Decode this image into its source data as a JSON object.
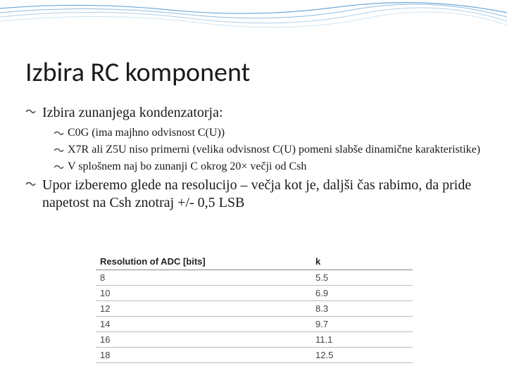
{
  "decoration": {
    "wave_colors": [
      "#6fa8d8",
      "#8fbce0",
      "#b0d0e8",
      "#d0e4f2"
    ],
    "stroke_width": 1
  },
  "title": "Izbira RC komponent",
  "bullets": {
    "l1_1": "Izbira zunanjega kondenzatorja:",
    "l2_1": "C0G (ima majhno odvisnost C(U))",
    "l2_2": "X7R ali Z5U niso primerni (velika odvisnost C(U) pomeni slabše dinamične karakteristike)",
    "l2_3": "V splošnem naj bo zunanji C okrog 20× večji od Csh",
    "l1_2": "Upor izberemo glede na resolucijo – večja kot je, daljši čas rabimo, da pride napetost na Csh znotraj +/- 0,5 LSB"
  },
  "table": {
    "header_col1": "Resolution of ADC [bits]",
    "header_col2": "k",
    "rows": [
      {
        "c1": "8",
        "c2": "5.5"
      },
      {
        "c1": "10",
        "c2": "6.9"
      },
      {
        "c1": "12",
        "c2": "8.3"
      },
      {
        "c1": "14",
        "c2": "9.7"
      },
      {
        "c1": "16",
        "c2": "11.1"
      },
      {
        "c1": "18",
        "c2": "12.5"
      }
    ]
  },
  "style": {
    "title_fontsize": 38,
    "l1_fontsize": 20,
    "l2_fontsize": 16,
    "table_fontsize": 13,
    "text_color": "#1a1a1a",
    "background": "#ffffff",
    "table_border_color": "#bbb",
    "table_header_border": "#888"
  }
}
